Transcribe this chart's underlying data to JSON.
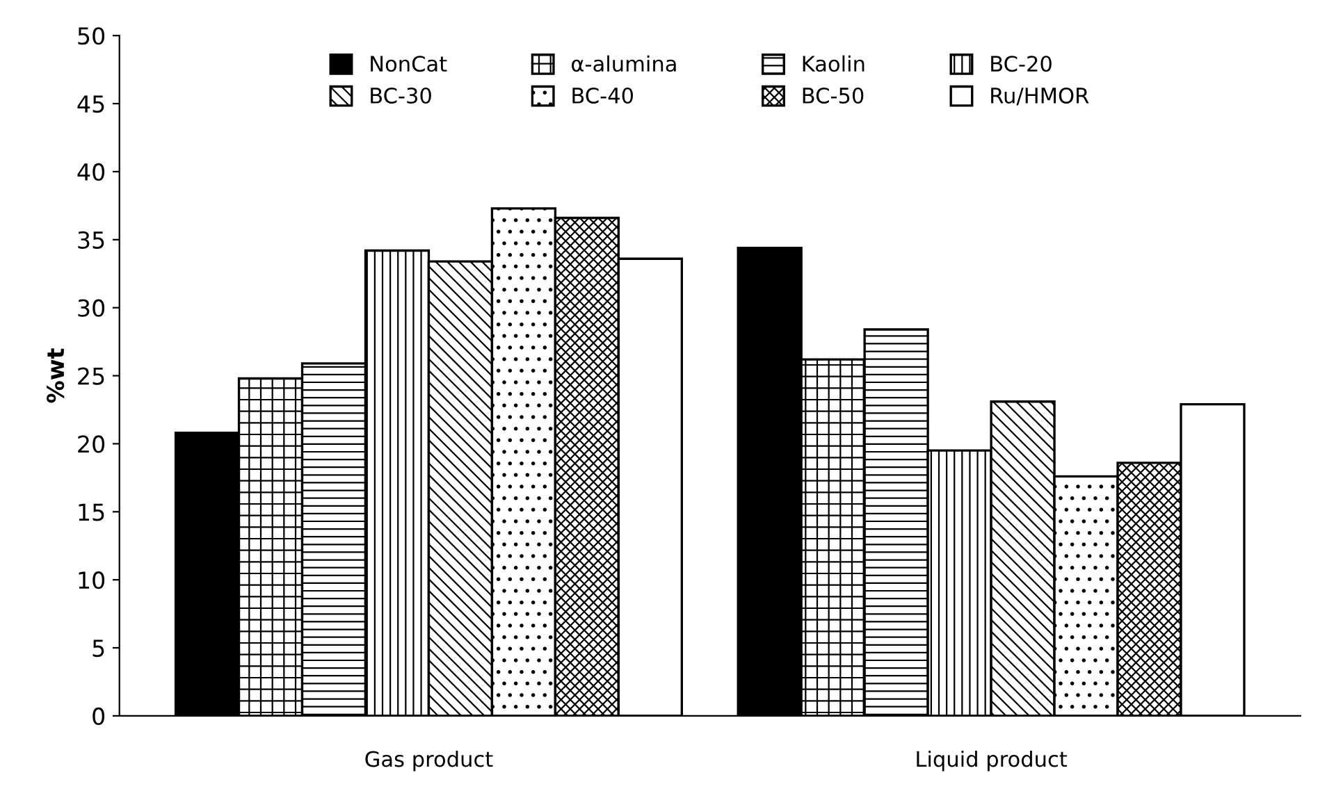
{
  "chart_data": {
    "type": "bar",
    "ylabel": "%wt",
    "categories": [
      "Gas product",
      "Liquid product"
    ],
    "series": [
      {
        "name": "NonCat",
        "color": "#000000",
        "values": [
          20.8,
          34.4
        ]
      },
      {
        "name": "α-alumina",
        "color": "#000000",
        "values": [
          24.8,
          26.2
        ]
      },
      {
        "name": "Kaolin",
        "color": "#000000",
        "values": [
          25.9,
          28.4
        ]
      },
      {
        "name": "BC-20",
        "color": "#000000",
        "values": [
          34.2,
          19.5
        ]
      },
      {
        "name": "BC-30",
        "color": "#000000",
        "values": [
          33.4,
          23.1
        ]
      },
      {
        "name": "BC-40",
        "color": "#000000",
        "values": [
          37.3,
          17.6
        ]
      },
      {
        "name": "BC-50",
        "color": "#000000",
        "values": [
          36.6,
          18.6
        ]
      },
      {
        "name": "Ru/HMOR",
        "color": "#ffffff",
        "values": [
          33.6,
          22.9
        ]
      }
    ],
    "ylim": [
      0,
      50
    ],
    "yticks": [
      0,
      5,
      10,
      15,
      20,
      25,
      30,
      35,
      40,
      45,
      50
    ],
    "grid": false,
    "legend": "top"
  }
}
